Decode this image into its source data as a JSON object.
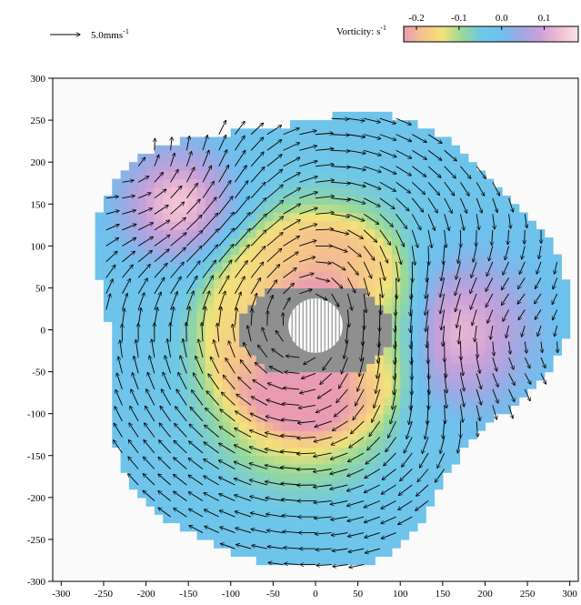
{
  "scale_arrow": {
    "value_text": "5.0mms",
    "unit_superscript": "-1"
  },
  "colorbar": {
    "label_text": "Vorticity: s",
    "label_superscript": "-1",
    "ticks": [
      "-0.2",
      "-0.1",
      "0.0",
      "0.1"
    ],
    "tick_values": [
      -0.2,
      -0.1,
      0.0,
      0.1
    ],
    "range": [
      -0.23,
      0.18
    ],
    "colors": [
      "#e89bb2",
      "#f5c48a",
      "#f3e27a",
      "#9ad996",
      "#6fc8e6",
      "#6ec0ee",
      "#9fa8e3",
      "#c9a0d8",
      "#f0bcd2",
      "#fbe4e4"
    ]
  },
  "chart_data": {
    "type": "quiver",
    "title": "",
    "xlabel": "",
    "ylabel": "",
    "xlim": [
      -310,
      310
    ],
    "ylim": [
      -300,
      300
    ],
    "x_ticks": [
      -300,
      -250,
      -200,
      -150,
      -100,
      -50,
      0,
      50,
      100,
      150,
      200,
      250,
      300
    ],
    "y_ticks": [
      300,
      250,
      200,
      150,
      100,
      50,
      0,
      -50,
      -100,
      -150,
      -200,
      -250,
      -300
    ],
    "x_tick_labels": [
      "-300",
      "-250",
      "-200",
      "-150",
      "-100",
      "-50",
      "0",
      "50",
      "100",
      "150",
      "200",
      "250",
      "300"
    ],
    "y_tick_labels": [
      "300",
      "250",
      "200",
      "150",
      "100",
      "50",
      "0",
      "-50",
      "-100",
      "-150",
      "-200",
      "-250",
      "-300"
    ],
    "grid": false,
    "vorticity_features": [
      {
        "kind": "positive",
        "x": -160,
        "y": 150,
        "sigma": 45,
        "peak": 0.17
      },
      {
        "kind": "positive",
        "x": 160,
        "y": 0,
        "sigma": 60,
        "peak": 0.17
      },
      {
        "kind": "negative",
        "x": 10,
        "y": 30,
        "sigma": 80,
        "peak": -0.2
      },
      {
        "kind": "negative",
        "x": -20,
        "y": -80,
        "sigma": 70,
        "peak": -0.15
      }
    ],
    "central_obstacle": {
      "x": 0,
      "y": 5,
      "radius": 32
    },
    "dead_zone": {
      "x": 0,
      "y": 0,
      "radius": 90
    },
    "flow_pattern": "tripolar vortex: cyclonic core around the centre with two positive satellites"
  }
}
